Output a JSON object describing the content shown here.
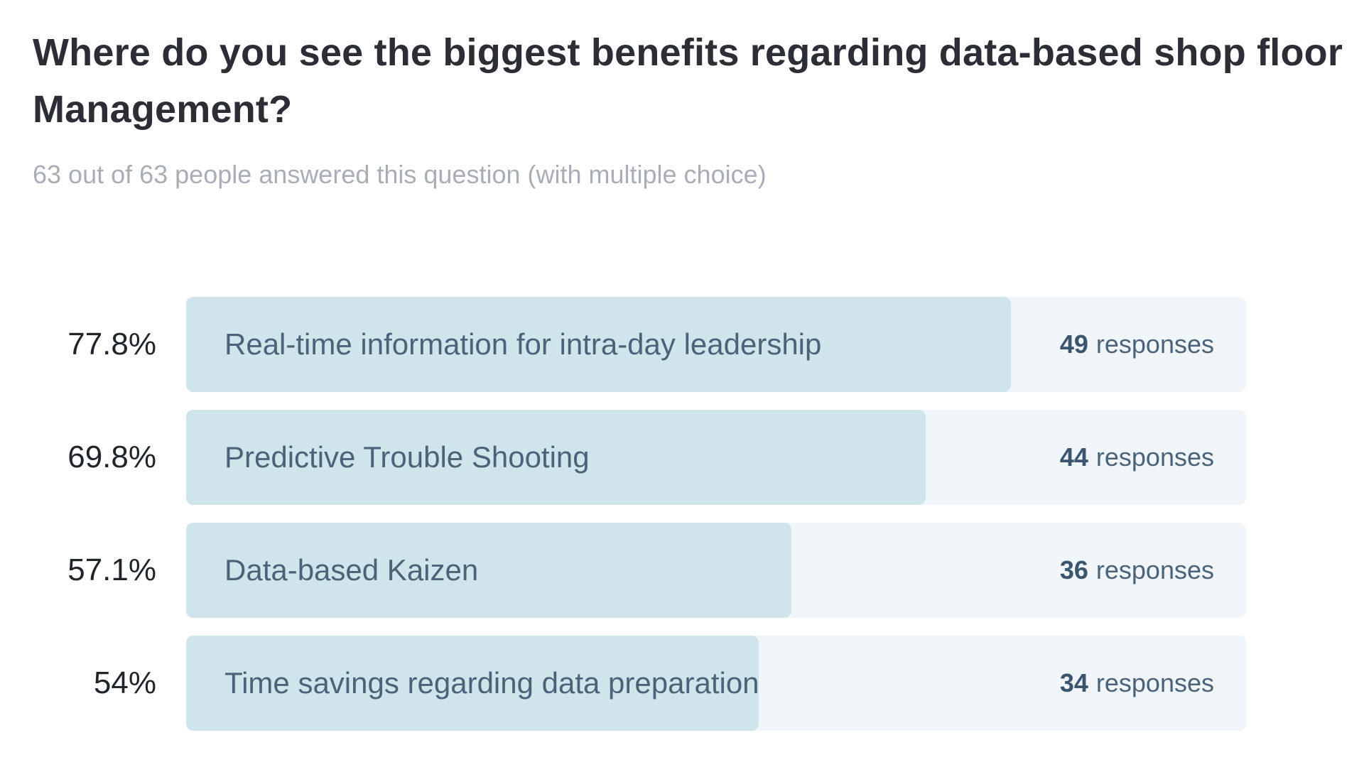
{
  "page": {
    "title": "Where do you see the biggest benefits regarding data-based shop floor Management?",
    "subtitle": "63 out of 63 people answered this question (with multiple choice)"
  },
  "chart_data": {
    "type": "bar",
    "orientation": "horizontal",
    "title": "Where do you see the biggest benefits regarding data-based shop floor Management?",
    "subtitle": "63 out of 63 people answered this question (with multiple choice)",
    "total_answered": 63,
    "total_people": 63,
    "multiple_choice": true,
    "xlim": [
      0,
      100
    ],
    "unit": "responses",
    "legend": "none",
    "grid": false,
    "categories": [
      "Real-time information for intra-day leadership",
      "Predictive Trouble Shooting",
      "Data-based Kaizen",
      "Time savings regarding data preparation"
    ],
    "values_percent": [
      77.8,
      69.8,
      57.1,
      54
    ],
    "values_count": [
      49,
      44,
      36,
      34
    ],
    "bars": [
      {
        "percent_label": "77.8%",
        "percent": 77.8,
        "label": "Real-time information for intra-day leadership",
        "count": 49,
        "count_label": "49",
        "unit": "responses"
      },
      {
        "percent_label": "69.8%",
        "percent": 69.8,
        "label": "Predictive Trouble Shooting",
        "count": 44,
        "count_label": "44",
        "unit": "responses"
      },
      {
        "percent_label": "57.1%",
        "percent": 57.1,
        "label": "Data-based Kaizen",
        "count": 36,
        "count_label": "36",
        "unit": "responses"
      },
      {
        "percent_label": "54%",
        "percent": 54,
        "label": "Time savings regarding data preparation",
        "count": 34,
        "count_label": "34",
        "unit": "responses"
      }
    ],
    "colors": {
      "bar_fill": "#cfe5eb",
      "bar_track": "#eff5f8",
      "label_text": "#4b6379",
      "count_text": "#3b556e",
      "percent_text": "#20252c",
      "title_text": "#2b2e34",
      "subtitle_text": "#a9aeb6"
    }
  }
}
